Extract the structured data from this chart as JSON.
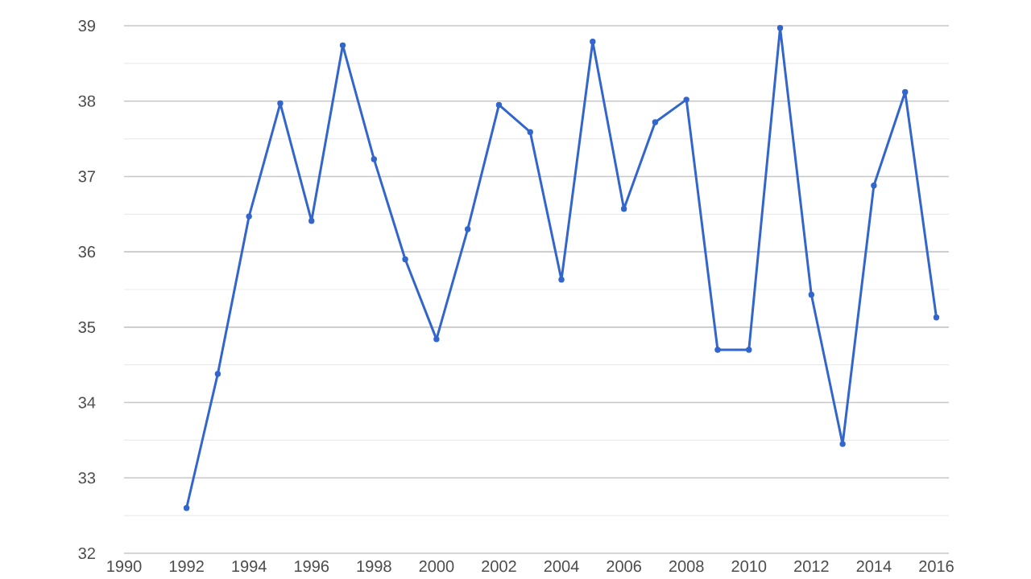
{
  "chart_data": {
    "type": "line",
    "x": [
      1992,
      1993,
      1994,
      1995,
      1996,
      1997,
      1998,
      1999,
      2000,
      2001,
      2002,
      2003,
      2004,
      2005,
      2006,
      2007,
      2008,
      2009,
      2010,
      2011,
      2012,
      2013,
      2014,
      2015,
      2016
    ],
    "series": [
      {
        "color": "#3366cc",
        "values": [
          32.6,
          34.38,
          36.47,
          37.97,
          36.41,
          38.74,
          37.23,
          35.9,
          34.84,
          36.3,
          37.95,
          37.59,
          35.63,
          38.79,
          36.57,
          37.72,
          38.02,
          34.7,
          34.7,
          38.97,
          35.43,
          33.45,
          36.88,
          38.12,
          35.13
        ]
      }
    ],
    "xlim": [
      1990,
      2016.4
    ],
    "ylim": [
      32,
      39
    ],
    "xticks": [
      1990,
      1992,
      1994,
      1996,
      1998,
      2000,
      2002,
      2004,
      2006,
      2008,
      2010,
      2012,
      2014,
      2016
    ],
    "yticks": [
      32,
      33,
      34,
      35,
      36,
      37,
      38,
      39
    ],
    "grid": "y",
    "marker": "circle",
    "line_style": "solid",
    "legend": false
  }
}
